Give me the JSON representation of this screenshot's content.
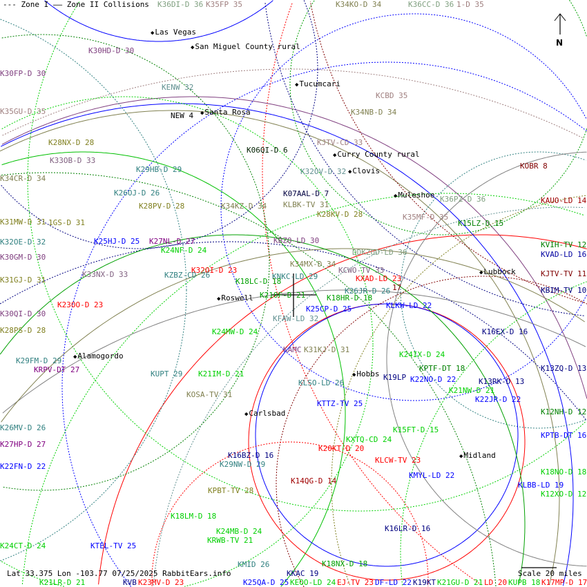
{
  "legend": {
    "zone1": "--- Zone I",
    "zone2": "—— Zone II Collisions"
  },
  "footer": {
    "info": "Lat 33.375 Lon -103.77 07/25/2025 RabbitEars.info",
    "scale": "Scale 20 miles"
  },
  "north_label": "N",
  "cities": [
    "Las Vegas",
    "San Miguel County rural",
    "Tucumcari",
    "Santa Rosa",
    "Curry County rural",
    "Clovis",
    "Muleshoe",
    "Roswell",
    "Lubbock",
    "Alamogordo",
    "Hobbs",
    "Carlsbad",
    "Midland"
  ],
  "stations": [
    {
      "label": "K36DI-D 36",
      "color": "#7f9f7f"
    },
    {
      "label": "K35FP 35",
      "color": "#a08080"
    },
    {
      "label": "K34KO-D 34",
      "color": "#808050"
    },
    {
      "label": "K36CC-D 36",
      "color": "#7f9f7f"
    },
    {
      "label": "1-D 35",
      "color": "#a08080"
    },
    {
      "label": "K30HD-D 30",
      "color": "#804080"
    },
    {
      "label": "K30FP-D 30",
      "color": "#804080"
    },
    {
      "label": "KENW 32",
      "color": "#609090"
    },
    {
      "label": "K35GU-D 35",
      "color": "#a08080"
    },
    {
      "label": "NEW 4",
      "color": "#000000"
    },
    {
      "label": "KCBD 35",
      "color": "#a08080"
    },
    {
      "label": "K34NB-D 34",
      "color": "#808050"
    },
    {
      "label": "K28NX-D 28",
      "color": "#808020"
    },
    {
      "label": "KJTV-CD 33",
      "color": "#a08080"
    },
    {
      "label": "K06QI-D 6",
      "color": "#002000"
    },
    {
      "label": "K33OB-D 33",
      "color": "#806080"
    },
    {
      "label": "K29HB-D 29",
      "color": "#308080"
    },
    {
      "label": "K32OV-D 32",
      "color": "#609090"
    },
    {
      "label": "K34CR-D 34",
      "color": "#808050"
    },
    {
      "label": "KOBR 8",
      "color": "#800000"
    },
    {
      "label": "K26OJ-D 26",
      "color": "#308080"
    },
    {
      "label": "K07AAL-D 7",
      "color": "#000040"
    },
    {
      "label": "K36PZ-D 36",
      "color": "#7f9f7f"
    },
    {
      "label": "KAUO-LD 14",
      "color": "#a00000"
    },
    {
      "label": "K28PV-D 28",
      "color": "#808020"
    },
    {
      "label": "K34KZ-D 34",
      "color": "#808050"
    },
    {
      "label": "KLBK-TV 31",
      "color": "#808050"
    },
    {
      "label": "K28KV-D 28",
      "color": "#808020"
    },
    {
      "label": "K35MF-D 35",
      "color": "#a08080"
    },
    {
      "label": "K15LZ-D 15",
      "color": "#008000"
    },
    {
      "label": "K31MW-D 31",
      "color": "#808020"
    },
    {
      "label": "1GS-D 31",
      "color": "#808020"
    },
    {
      "label": "K32OE-D 32",
      "color": "#308080"
    },
    {
      "label": "K25HJ-D 25",
      "color": "#0000ff"
    },
    {
      "label": "K27NL-D 27",
      "color": "#800080"
    },
    {
      "label": "KBZO-LD 30",
      "color": "#804080"
    },
    {
      "label": "K24NF-D 24",
      "color": "#00d000"
    },
    {
      "label": "KVIH-TV 12",
      "color": "#008000"
    },
    {
      "label": "DDKZOD-LD 36",
      "color": "#7f9f7f"
    },
    {
      "label": "KVAD-LD 16",
      "color": "#0000a0"
    },
    {
      "label": "K30GM-D 30",
      "color": "#804080"
    },
    {
      "label": "K34MX-D 34",
      "color": "#808050"
    },
    {
      "label": "K32OI-D 23",
      "color": "#ff0000"
    },
    {
      "label": "KCWO-TV 33",
      "color": "#806080"
    },
    {
      "label": "K33NX-D 33",
      "color": "#806080"
    },
    {
      "label": "KJTV-TV 11",
      "color": "#800000"
    },
    {
      "label": "KZBZ-CD 26",
      "color": "#308080"
    },
    {
      "label": "KNKC-LD 29",
      "color": "#308080"
    },
    {
      "label": "KXAD-LD 23",
      "color": "#ff0000"
    },
    {
      "label": "K31GJ-D 31",
      "color": "#808020"
    },
    {
      "label": "K18LC-D 18",
      "color": "#00a000"
    },
    {
      "label": "17",
      "color": "#800000"
    },
    {
      "label": "KBIM-TV 10",
      "color": "#000080"
    },
    {
      "label": "K26JR-D 26",
      "color": "#308080"
    },
    {
      "label": "K21OF-D 21",
      "color": "#00a000"
    },
    {
      "label": "K18HR-D 18",
      "color": "#00a000"
    },
    {
      "label": "K23OO-D 23",
      "color": "#ff0000"
    },
    {
      "label": "KLKW-LD 22",
      "color": "#0000ff"
    },
    {
      "label": "K25CP-D 25",
      "color": "#0000ff"
    },
    {
      "label": "K30QI-D 30",
      "color": "#804080"
    },
    {
      "label": "KFAW-LD 32",
      "color": "#609090"
    },
    {
      "label": "K28PS-D 28",
      "color": "#808020"
    },
    {
      "label": "K24MW-D 24",
      "color": "#00d000"
    },
    {
      "label": "K16EX-D 16",
      "color": "#000080"
    },
    {
      "label": "KAMC",
      "color": "#804080"
    },
    {
      "label": "K31KJ-D 31",
      "color": "#808050"
    },
    {
      "label": "K24IX-D 24",
      "color": "#00d000"
    },
    {
      "label": "K29FM-D 29",
      "color": "#308080"
    },
    {
      "label": "KRPV-DT 27",
      "color": "#800080"
    },
    {
      "label": "KPTF-DT 18",
      "color": "#008000"
    },
    {
      "label": "K13ZQ-D 13",
      "color": "#000080"
    },
    {
      "label": "KUPT 29",
      "color": "#308080"
    },
    {
      "label": "K21IM-D 21",
      "color": "#00d000"
    },
    {
      "label": "K19LP",
      "color": "#000080"
    },
    {
      "label": "K22NO-D 22",
      "color": "#0000ff"
    },
    {
      "label": "KLSO-LD 26",
      "color": "#308080"
    },
    {
      "label": "K13RK-D 13",
      "color": "#000080"
    },
    {
      "label": "K21NW-D 21",
      "color": "#00d000"
    },
    {
      "label": "K22JR-D 22",
      "color": "#0000ff"
    },
    {
      "label": "KOSA-TV 31",
      "color": "#808050"
    },
    {
      "label": "KTTZ-TV 25",
      "color": "#0000ff"
    },
    {
      "label": "K12NH-D 12",
      "color": "#008000"
    },
    {
      "label": "K26MV-D 26",
      "color": "#308080"
    },
    {
      "label": "K15FT-D 15",
      "color": "#00d000"
    },
    {
      "label": "KPTB-DT 16",
      "color": "#0000ff"
    },
    {
      "label": "KXTQ-CD 24",
      "color": "#00d000"
    },
    {
      "label": "K27HP-D 27",
      "color": "#800080"
    },
    {
      "label": "K20KT-D 20",
      "color": "#ff0000"
    },
    {
      "label": "K16BZ-D 16",
      "color": "#000080"
    },
    {
      "label": "KLCW-TV 23",
      "color": "#ff0000"
    },
    {
      "label": "K29NW-D 29",
      "color": "#308080"
    },
    {
      "label": "K22FN-D 22",
      "color": "#0000ff"
    },
    {
      "label": "K18NO-D 18",
      "color": "#00d000"
    },
    {
      "label": "KMYL-LD 22",
      "color": "#0000ff"
    },
    {
      "label": "K14QG-D 14",
      "color": "#a00000"
    },
    {
      "label": "KLBB-LD 19",
      "color": "#0000ff"
    },
    {
      "label": "KPBT-TV 28",
      "color": "#808020"
    },
    {
      "label": "K12XO-D 12",
      "color": "#00d000"
    },
    {
      "label": "K18LM-D 18",
      "color": "#00d000"
    },
    {
      "label": "K16LR-D 16",
      "color": "#000080"
    },
    {
      "label": "K24MB-D 24",
      "color": "#00d000"
    },
    {
      "label": "KRWB-TV 21",
      "color": "#00d000"
    },
    {
      "label": "K24CT-D 24",
      "color": "#00d000"
    },
    {
      "label": "KTEL-TV 25",
      "color": "#0000ff"
    },
    {
      "label": "K18NX-D 18",
      "color": "#00a000"
    },
    {
      "label": "KMID 26",
      "color": "#308080"
    },
    {
      "label": "KKAC 19",
      "color": "#000080"
    },
    {
      "label": "K21LR-D 21",
      "color": "#00d000"
    },
    {
      "label": "KVB",
      "color": "#000080"
    },
    {
      "label": "K23MV-D 23",
      "color": "#ff0000"
    },
    {
      "label": "K25QA-D 25",
      "color": "#0000ff"
    },
    {
      "label": "KEOO-LD 24",
      "color": "#00d000"
    },
    {
      "label": "EJ-TV 23",
      "color": "#ff0000"
    },
    {
      "label": "DF-LD 22",
      "color": "#0000ff"
    },
    {
      "label": "K19KT",
      "color": "#000080"
    },
    {
      "label": "K21GU-D 21",
      "color": "#00d000"
    },
    {
      "label": "LD 20",
      "color": "#ff0000"
    },
    {
      "label": "KUPB 18",
      "color": "#00d000"
    },
    {
      "label": "K17MP-D 17",
      "color": "#ff0000"
    }
  ]
}
